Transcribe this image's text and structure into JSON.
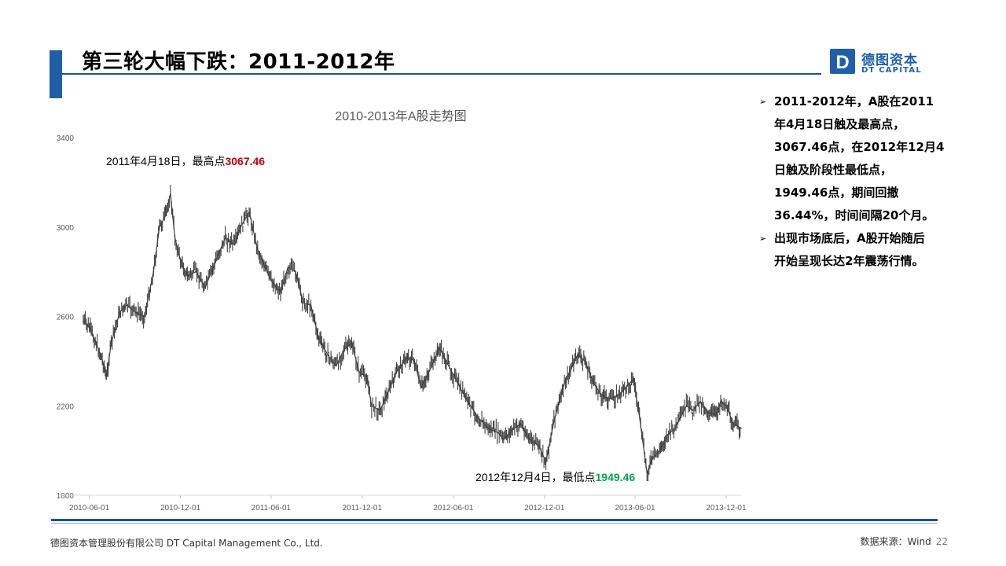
{
  "header": {
    "title": "第三轮大幅下跌：2011-2012年",
    "logo_cn": "德图资本",
    "logo_en": "DT CAPITAL",
    "logo_mark_letter": "D"
  },
  "chart_data": {
    "type": "line",
    "title": "2010-2013年A股走势图",
    "xlabel": "",
    "ylabel": "",
    "ylim": [
      1800,
      3400
    ],
    "xlim": [
      "2010-05-20",
      "2013-12-31"
    ],
    "yticks": [
      "1800",
      "2200",
      "2600",
      "3000",
      "3400"
    ],
    "xticks": [
      "2010-06-01",
      "2010-12-01",
      "2011-06-01",
      "2011-12-01",
      "2012-06-01",
      "2012-12-01",
      "2013-06-01",
      "2013-12-01"
    ],
    "grid": false,
    "legend": "none",
    "line_color": "#404040",
    "series": [
      {
        "x": [
          "2010-05-20",
          "2010-06-01",
          "2010-06-15",
          "2010-07-01",
          "2010-07-05",
          "2010-07-15",
          "2010-08-01",
          "2010-08-15",
          "2010-09-01",
          "2010-09-20",
          "2010-10-08",
          "2010-10-20",
          "2010-11-01",
          "2010-11-11",
          "2010-11-20",
          "2010-12-01",
          "2010-12-15",
          "2011-01-01",
          "2011-01-20",
          "2011-02-10",
          "2011-03-01",
          "2011-03-20",
          "2011-04-01",
          "2011-04-18",
          "2011-05-05",
          "2011-05-20",
          "2011-06-01",
          "2011-06-20",
          "2011-07-05",
          "2011-07-20",
          "2011-08-05",
          "2011-08-20",
          "2011-09-05",
          "2011-09-25",
          "2011-10-10",
          "2011-10-25",
          "2011-11-10",
          "2011-11-25",
          "2011-12-10",
          "2011-12-20",
          "2012-01-06",
          "2012-01-20",
          "2012-02-10",
          "2012-03-01",
          "2012-03-15",
          "2012-03-28",
          "2012-04-15",
          "2012-05-04",
          "2012-05-20",
          "2012-06-10",
          "2012-06-30",
          "2012-07-20",
          "2012-08-10",
          "2012-08-30",
          "2012-09-10",
          "2012-09-26",
          "2012-10-15",
          "2012-11-01",
          "2012-11-20",
          "2012-12-04",
          "2012-12-20",
          "2013-01-10",
          "2013-02-06",
          "2013-02-20",
          "2013-03-10",
          "2013-03-25",
          "2013-04-10",
          "2013-05-01",
          "2013-05-29",
          "2013-06-10",
          "2013-06-25",
          "2013-07-05",
          "2013-07-20",
          "2013-08-05",
          "2013-08-20",
          "2013-09-12",
          "2013-09-25",
          "2013-10-10",
          "2013-10-25",
          "2013-11-10",
          "2013-11-20",
          "2013-12-01",
          "2013-12-15",
          "2013-12-31"
        ],
        "values": [
          2580,
          2550,
          2480,
          2380,
          2320,
          2480,
          2620,
          2650,
          2620,
          2600,
          2800,
          3000,
          3050,
          3150,
          2950,
          2850,
          2780,
          2800,
          2730,
          2850,
          2950,
          2920,
          3000,
          3067.46,
          2900,
          2820,
          2760,
          2710,
          2820,
          2800,
          2660,
          2650,
          2500,
          2420,
          2380,
          2450,
          2480,
          2350,
          2330,
          2200,
          2180,
          2250,
          2360,
          2420,
          2400,
          2280,
          2360,
          2460,
          2390,
          2300,
          2220,
          2150,
          2100,
          2080,
          2050,
          2090,
          2120,
          2050,
          2020,
          1949.46,
          2130,
          2300,
          2430,
          2400,
          2300,
          2250,
          2230,
          2250,
          2320,
          2150,
          1900,
          1960,
          2000,
          2070,
          2100,
          2200,
          2180,
          2220,
          2170,
          2160,
          2220,
          2200,
          2120,
          2100
        ]
      }
    ],
    "annotations": [
      {
        "prefix": "2011年4月18日，最高点",
        "value": "3067.46",
        "color": "#c00000"
      },
      {
        "prefix": "2012年12月4日，最低点",
        "value": "1949.46",
        "color": "#00a651"
      }
    ]
  },
  "bullets": [
    {
      "lines": [
        "2011-2012年，A股在2011",
        "年4月18日触及最高点，",
        "3067.46点，在2012年12月4",
        "日触及阶段性最低点，",
        "1949.46点，期间回撤",
        "36.44%，时间间隔20个月。"
      ]
    },
    {
      "lines": [
        "出现市场底后，A股开始随后",
        "开始呈现长达2年震荡行情。"
      ]
    }
  ],
  "footer": {
    "company": "德图资本管理股份有限公司  DT Capital  Management  Co.,  Ltd.",
    "source": "数据来源：Wind",
    "page": "22"
  },
  "colors": {
    "brand_blue": "#1f5fa8",
    "rule_blue": "#1f4f92",
    "high_red": "#c00000",
    "low_green": "#00a651"
  }
}
